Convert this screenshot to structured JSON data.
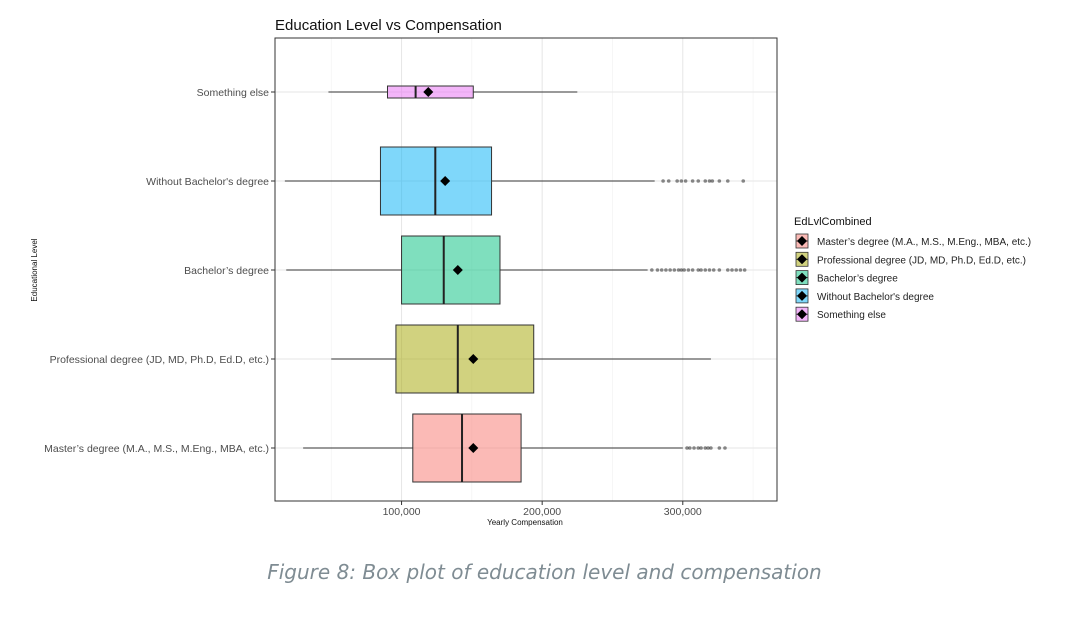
{
  "chart_data": {
    "type": "boxplot",
    "title": "Education Level vs Compensation",
    "xlabel": "Yearly Compensation",
    "ylabel": "Educational Level",
    "xlim": [
      10000,
      367000
    ],
    "xticks": [
      100000,
      200000,
      300000
    ],
    "xtick_labels": [
      "100,000",
      "200,000",
      "300,000"
    ],
    "grid": true,
    "legend_title": "EdLvlCombined",
    "legend_position": "right",
    "categories": [
      "Something else",
      "Without Bachelor's degree",
      "Bachelor’s degree",
      "Professional degree (JD, MD, Ph.D, Ed.D, etc.)",
      "Master’s degree (M.A., M.S., M.Eng., MBA, etc.)"
    ],
    "series": [
      {
        "name": "Master’s degree (M.A., M.S., M.Eng., MBA, etc.)",
        "color": "#F8766D",
        "whisker_low": 30000,
        "q1": 108000,
        "median": 143000,
        "q3": 185000,
        "whisker_high": 300000,
        "mean": 151000,
        "outliers": [
          303000,
          305000,
          308000,
          311000,
          313000,
          316000,
          318000,
          320000,
          326000,
          330000
        ]
      },
      {
        "name": "Professional degree (JD, MD, Ph.D, Ed.D, etc.)",
        "color": "#A3A500",
        "whisker_low": 50000,
        "q1": 96000,
        "median": 140000,
        "q3": 194000,
        "whisker_high": 320000,
        "mean": 151000,
        "outliers": []
      },
      {
        "name": "Bachelor’s degree",
        "color": "#00BF7D",
        "whisker_low": 18000,
        "q1": 100000,
        "median": 130000,
        "q3": 170000,
        "whisker_high": 275000,
        "mean": 140000,
        "outliers": [
          278000,
          282000,
          285000,
          288000,
          291000,
          294000,
          297000,
          299000,
          301000,
          304000,
          307000,
          311000,
          313000,
          316000,
          319000,
          322000,
          326000,
          332000,
          335000,
          338000,
          341000,
          344000
        ]
      },
      {
        "name": "Without Bachelor's degree",
        "color": "#00B0F6",
        "whisker_low": 17000,
        "q1": 85000,
        "median": 124000,
        "q3": 164000,
        "whisker_high": 280000,
        "mean": 131000,
        "outliers": [
          286000,
          290000,
          296000,
          299000,
          302000,
          307000,
          311000,
          316000,
          319000,
          321000,
          326000,
          332000,
          343000
        ]
      },
      {
        "name": "Something else",
        "color": "#E76BF3",
        "whisker_low": 48000,
        "q1": 90000,
        "median": 110000,
        "q3": 151000,
        "whisker_high": 225000,
        "mean": 119000,
        "outliers": []
      }
    ]
  },
  "caption": "Figure 8: Box plot of education level and compensation"
}
